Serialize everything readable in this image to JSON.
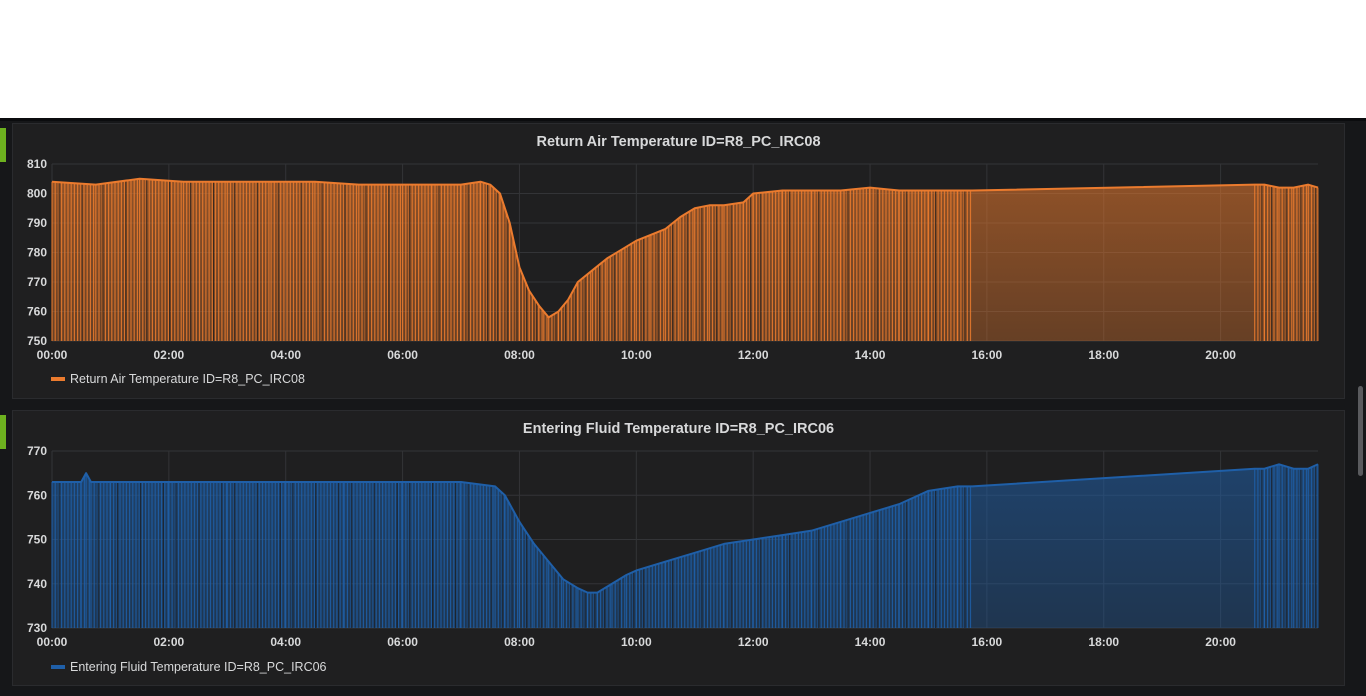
{
  "chart_data": [
    {
      "type": "area",
      "title": "Return Air Temperature ID=R8_PC_IRC08",
      "color": "#eb7b2e",
      "ylim": [
        750,
        810
      ],
      "yticks": [
        750,
        760,
        770,
        780,
        790,
        800,
        810
      ],
      "xlim": [
        "00:00",
        "21:40"
      ],
      "xticks": [
        "00:00",
        "02:00",
        "04:00",
        "06:00",
        "08:00",
        "10:00",
        "12:00",
        "14:00",
        "16:00",
        "18:00",
        "20:00"
      ],
      "grid": true,
      "legend_position": "bottom-left",
      "series": [
        {
          "name": "Return Air Temperature ID=R8_PC_IRC08",
          "x": [
            "00:00",
            "00:45",
            "01:30",
            "02:15",
            "03:00",
            "03:45",
            "04:30",
            "05:15",
            "06:00",
            "06:30",
            "07:00",
            "07:20",
            "07:30",
            "07:40",
            "07:50",
            "08:00",
            "08:10",
            "08:20",
            "08:25",
            "08:30",
            "08:40",
            "08:50",
            "09:00",
            "09:15",
            "09:30",
            "09:45",
            "10:00",
            "10:15",
            "10:30",
            "10:45",
            "11:00",
            "11:15",
            "11:30",
            "11:50",
            "12:00",
            "12:30",
            "13:00",
            "13:30",
            "14:00",
            "14:30",
            "15:00",
            "15:30",
            "15:45",
            "20:35",
            "20:45",
            "21:00",
            "21:15",
            "21:30",
            "21:40"
          ],
          "y": [
            804,
            803,
            805,
            804,
            804,
            804,
            804,
            803,
            803,
            803,
            803,
            804,
            803,
            800,
            790,
            775,
            767,
            762,
            760,
            758,
            760,
            764,
            770,
            774,
            778,
            781,
            784,
            786,
            788,
            792,
            795,
            796,
            796,
            797,
            800,
            801,
            801,
            801,
            802,
            801,
            801,
            801,
            801,
            803,
            803,
            802,
            802,
            803,
            802
          ]
        }
      ],
      "legend": [
        "Return Air Temperature ID=R8_PC_IRC08"
      ]
    },
    {
      "type": "area",
      "title": "Entering Fluid Temperature ID=R8_PC_IRC06",
      "color": "#1f5fa8",
      "ylim": [
        730,
        770
      ],
      "yticks": [
        730,
        740,
        750,
        760,
        770
      ],
      "xlim": [
        "00:00",
        "21:40"
      ],
      "xticks": [
        "00:00",
        "02:00",
        "04:00",
        "06:00",
        "08:00",
        "10:00",
        "12:00",
        "14:00",
        "16:00",
        "18:00",
        "20:00"
      ],
      "grid": true,
      "legend_position": "bottom-left",
      "series": [
        {
          "name": "Entering Fluid Temperature ID=R8_PC_IRC06",
          "x": [
            "00:00",
            "00:30",
            "00:35",
            "00:40",
            "01:00",
            "02:00",
            "03:00",
            "04:00",
            "05:00",
            "06:00",
            "07:00",
            "07:35",
            "07:45",
            "08:00",
            "08:15",
            "08:30",
            "08:45",
            "09:00",
            "09:10",
            "09:20",
            "09:35",
            "09:50",
            "10:00",
            "10:30",
            "11:00",
            "11:30",
            "12:00",
            "12:30",
            "13:00",
            "13:30",
            "14:00",
            "14:30",
            "15:00",
            "15:30",
            "15:45",
            "20:35",
            "20:45",
            "21:00",
            "21:15",
            "21:30",
            "21:40"
          ],
          "y": [
            763,
            763,
            765,
            763,
            763,
            763,
            763,
            763,
            763,
            763,
            763,
            762,
            760,
            754,
            749,
            745,
            741,
            739,
            738,
            738,
            740,
            742,
            743,
            745,
            747,
            749,
            750,
            751,
            752,
            754,
            756,
            758,
            761,
            762,
            762,
            766,
            766,
            767,
            766,
            766,
            767
          ]
        }
      ],
      "legend": [
        "Entering Fluid Temperature ID=R8_PC_IRC06"
      ]
    }
  ]
}
